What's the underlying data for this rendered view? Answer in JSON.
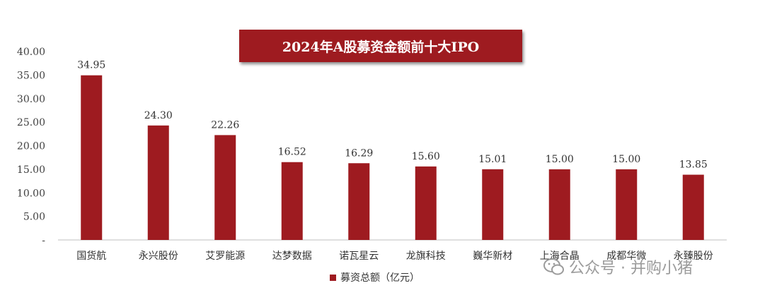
{
  "chart_data": {
    "type": "bar",
    "title": "2024年A股募资金额前十大IPO",
    "categories": [
      "国货航",
      "永兴股份",
      "艾罗能源",
      "达梦数据",
      "诺瓦星云",
      "龙旗科技",
      "巍华新材",
      "上海合晶",
      "成都华微",
      "永臻股份"
    ],
    "series": [
      {
        "name": "募资总额（亿元）",
        "values": [
          34.95,
          24.3,
          22.26,
          16.52,
          16.29,
          15.6,
          15.01,
          15.0,
          15.0,
          13.85
        ]
      }
    ],
    "data_labels": [
      "34.95",
      "24.30",
      "22.26",
      "16.52",
      "16.29",
      "15.60",
      "15.01",
      "15.00",
      "15.00",
      "13.85"
    ],
    "y_ticks": [
      "-",
      "5.00",
      "10.00",
      "15.00",
      "20.00",
      "25.00",
      "30.00",
      "35.00",
      "40.00"
    ],
    "ylim": [
      0,
      40
    ],
    "grid": false,
    "legend_position": "bottom",
    "bar_color": "#9e1b20"
  },
  "watermark": {
    "text": "公众号 · 并购小猪"
  }
}
